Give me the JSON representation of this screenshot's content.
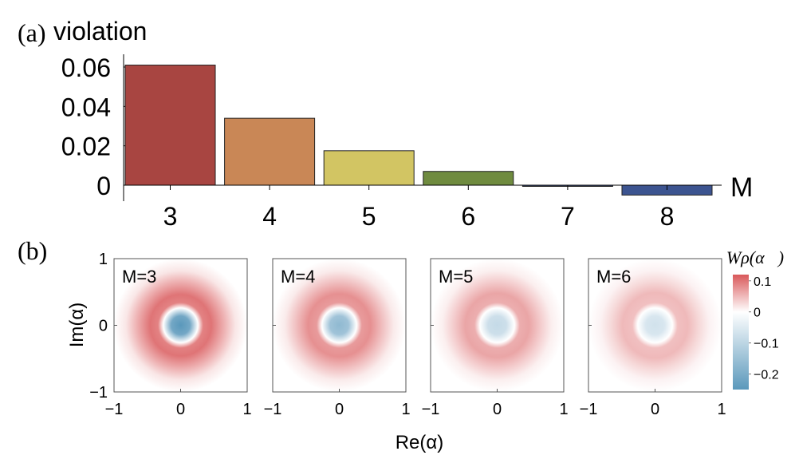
{
  "panel_a": {
    "label": "(a)",
    "ylabel": "violation",
    "xlabel": "M"
  },
  "panel_b": {
    "label": "(b)",
    "xlabel": "Re(α)",
    "ylabel": "Im(α)",
    "colorbar_title": "Wρ(α⃗)",
    "colorbar_ticks": [
      "0.1",
      "0",
      "−0.1",
      "−0.2"
    ],
    "colors": {
      "positive": "#d9585a",
      "negative": "#5a98bb",
      "zero": "#ffffff"
    }
  },
  "chart_data": [
    {
      "type": "bar",
      "categories": [
        "3",
        "4",
        "5",
        "6",
        "7",
        "8"
      ],
      "values": [
        0.061,
        0.034,
        0.0175,
        0.007,
        -0.0003,
        -0.005
      ],
      "colors": [
        "#a84541",
        "#c98756",
        "#d2c563",
        "#6f8b3f",
        "#3a4a76",
        "#3c5490"
      ],
      "ylabel": "violation",
      "xlabel": "M",
      "yticks": [
        "0",
        "0.02",
        "0.04",
        "0.06"
      ],
      "ytick_values": [
        0,
        0.02,
        0.04,
        0.06
      ],
      "ylim": [
        -0.006,
        0.064
      ]
    },
    {
      "type": "heatmap",
      "panels": [
        {
          "label": "M=3",
          "center": -0.25,
          "ring": 0.1
        },
        {
          "label": "M=4",
          "center": -0.17,
          "ring": 0.08
        },
        {
          "label": "M=5",
          "center": -0.09,
          "ring": 0.065
        },
        {
          "label": "M=6",
          "center": -0.07,
          "ring": 0.05
        }
      ],
      "xlabel": "Re(α)",
      "ylabel": "Im(α)",
      "xticks": [
        "−1",
        "0",
        "1"
      ],
      "yticks": [
        "1",
        "0",
        "−1"
      ],
      "xlim": [
        -1,
        1
      ],
      "ylim": [
        -1,
        1
      ],
      "colorbar_range": [
        -0.25,
        0.12
      ]
    }
  ]
}
